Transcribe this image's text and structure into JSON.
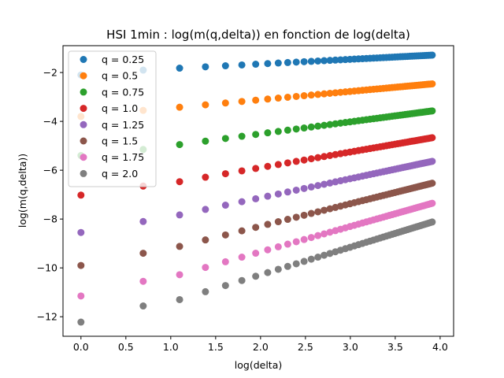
{
  "chart_data": {
    "type": "scatter",
    "title": "HSI 1min : log(m(q,delta)) en fonction de log(delta)",
    "xlabel": "log(delta)",
    "ylabel": "log(m(q,delta))",
    "xlim": [
      -0.2,
      4.15
    ],
    "ylim": [
      -12.8,
      -0.9
    ],
    "xticks": [
      0.0,
      0.5,
      1.0,
      1.5,
      2.0,
      2.5,
      3.0,
      3.5,
      4.0
    ],
    "xtick_labels": [
      "0.0",
      "0.5",
      "1.0",
      "1.5",
      "2.0",
      "2.5",
      "3.0",
      "3.5",
      "4.0"
    ],
    "yticks": [
      -12,
      -10,
      -8,
      -6,
      -4,
      -2
    ],
    "ytick_labels": [
      "−12",
      "−10",
      "−8",
      "−6",
      "−4",
      "−2"
    ],
    "grid": false,
    "legend_position": "top-left",
    "x_delta_values": [
      1,
      2,
      3,
      4,
      5,
      6,
      7,
      8,
      9,
      10,
      11,
      12,
      13,
      14,
      15,
      16,
      17,
      18,
      19,
      20,
      21,
      22,
      23,
      24,
      25,
      26,
      27,
      28,
      29,
      30,
      31,
      32,
      33,
      34,
      35,
      36,
      37,
      38,
      39,
      40,
      41,
      42,
      43,
      44,
      45,
      46,
      47,
      48,
      49,
      50
    ],
    "series": [
      {
        "name": "q = 0.25",
        "color": "#1f77b4",
        "first_point": [
          0.0,
          -2.1
        ],
        "second_point": [
          0.693,
          -1.9
        ],
        "y_at_log3": -1.82,
        "slope": 0.19,
        "y_at_end": -1.27
      },
      {
        "name": "q = 0.5",
        "color": "#ff7f0e",
        "first_point": [
          0.0,
          -3.8
        ],
        "second_point": [
          0.693,
          -3.55
        ],
        "y_at_log3": -3.42,
        "slope": 0.34,
        "y_at_end": -2.45
      },
      {
        "name": "q = 0.75",
        "color": "#2ca02c",
        "first_point": [
          0.0,
          -5.4
        ],
        "second_point": [
          0.693,
          -5.15
        ],
        "y_at_log3": -4.95,
        "slope": 0.49,
        "y_at_end": -3.58
      },
      {
        "name": "q = 1.0",
        "color": "#d62728",
        "first_point": [
          0.0,
          -7.02
        ],
        "second_point": [
          0.693,
          -6.65
        ],
        "y_at_log3": -6.47,
        "slope": 0.64,
        "y_at_end": -4.67
      },
      {
        "name": "q = 1.25",
        "color": "#9467bd",
        "first_point": [
          0.0,
          -8.55
        ],
        "second_point": [
          0.693,
          -8.1
        ],
        "y_at_log3": -7.83,
        "slope": 0.78,
        "y_at_end": -5.69
      },
      {
        "name": "q = 1.5",
        "color": "#8c564b",
        "first_point": [
          0.0,
          -9.9
        ],
        "second_point": [
          0.693,
          -9.4
        ],
        "y_at_log3": -9.12,
        "slope": 0.92,
        "y_at_end": -6.65
      },
      {
        "name": "q = 1.75",
        "color": "#e377c2",
        "first_point": [
          0.0,
          -11.15
        ],
        "second_point": [
          0.693,
          -10.55
        ],
        "y_at_log3": -10.28,
        "slope": 1.04,
        "y_at_end": -7.57
      },
      {
        "name": "q = 2.0",
        "color": "#7f7f7f",
        "first_point": [
          0.0,
          -12.22
        ],
        "second_point": [
          0.693,
          -11.56
        ],
        "y_at_log3": -11.3,
        "slope": 1.13,
        "y_at_end": -8.47
      }
    ]
  }
}
